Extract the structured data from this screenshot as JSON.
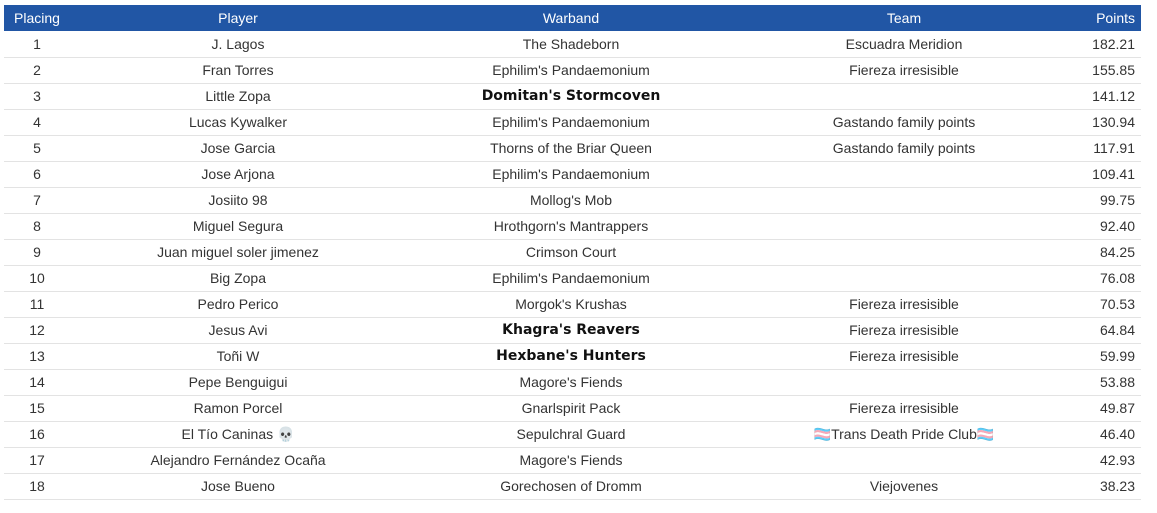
{
  "headers": {
    "placing": "Placing",
    "player": "Player",
    "warband": "Warband",
    "team": "Team",
    "points": "Points"
  },
  "rows": [
    {
      "placing": "1",
      "player": "J. Lagos",
      "warband": "The Shadeborn",
      "warband_bold": false,
      "team": "Escuadra Meridion",
      "points": "182.21"
    },
    {
      "placing": "2",
      "player": "Fran Torres",
      "warband": "Ephilim's Pandaemonium",
      "warband_bold": false,
      "team": "Fiereza irresisible",
      "points": "155.85"
    },
    {
      "placing": "3",
      "player": "Little Zopa",
      "warband": "Domitan's Stormcoven",
      "warband_bold": true,
      "team": "",
      "points": "141.12"
    },
    {
      "placing": "4",
      "player": "Lucas Kywalker",
      "warband": "Ephilim's Pandaemonium",
      "warband_bold": false,
      "team": "Gastando family points",
      "points": "130.94"
    },
    {
      "placing": "5",
      "player": "Jose Garcia",
      "warband": "Thorns of the Briar Queen",
      "warband_bold": false,
      "team": "Gastando family points",
      "points": "117.91"
    },
    {
      "placing": "6",
      "player": "Jose Arjona",
      "warband": "Ephilim's Pandaemonium",
      "warband_bold": false,
      "team": "",
      "points": "109.41"
    },
    {
      "placing": "7",
      "player": "Josiito 98",
      "warband": "Mollog's Mob",
      "warband_bold": false,
      "team": "",
      "points": "99.75"
    },
    {
      "placing": "8",
      "player": "Miguel Segura",
      "warband": "Hrothgorn's Mantrappers",
      "warband_bold": false,
      "team": "",
      "points": "92.40"
    },
    {
      "placing": "9",
      "player": "Juan miguel soler jimenez",
      "warband": "Crimson Court",
      "warband_bold": false,
      "team": "",
      "points": "84.25"
    },
    {
      "placing": "10",
      "player": "Big Zopa",
      "warband": "Ephilim's Pandaemonium",
      "warband_bold": false,
      "team": "",
      "points": "76.08"
    },
    {
      "placing": "11",
      "player": "Pedro Perico",
      "warband": "Morgok's Krushas",
      "warband_bold": false,
      "team": "Fiereza irresisible",
      "points": "70.53"
    },
    {
      "placing": "12",
      "player": "Jesus Avi",
      "warband": "Khagra's Reavers",
      "warband_bold": true,
      "team": "Fiereza irresisible",
      "points": "64.84"
    },
    {
      "placing": "13",
      "player": "Toñi W",
      "warband": "Hexbane's Hunters",
      "warband_bold": true,
      "team": "Fiereza irresisible",
      "points": "59.99"
    },
    {
      "placing": "14",
      "player": "Pepe Benguigui",
      "warband": "Magore's Fiends",
      "warband_bold": false,
      "team": "",
      "points": "53.88"
    },
    {
      "placing": "15",
      "player": "Ramon Porcel",
      "warband": "Gnarlspirit Pack",
      "warband_bold": false,
      "team": "Fiereza irresisible",
      "points": "49.87"
    },
    {
      "placing": "16",
      "player": "El Tío Caninas 💀",
      "warband": "Sepulchral Guard",
      "warband_bold": false,
      "team": "🏳️‍⚧️Trans Death Pride Club🏳️‍⚧️",
      "points": "46.40"
    },
    {
      "placing": "17",
      "player": "Alejandro Fernández Ocaña",
      "warband": "Magore's Fiends",
      "warband_bold": false,
      "team": "",
      "points": "42.93"
    },
    {
      "placing": "18",
      "player": "Jose Bueno",
      "warband": "Gorechosen of Dromm",
      "warband_bold": false,
      "team": "Viejovenes",
      "points": "38.23"
    }
  ]
}
